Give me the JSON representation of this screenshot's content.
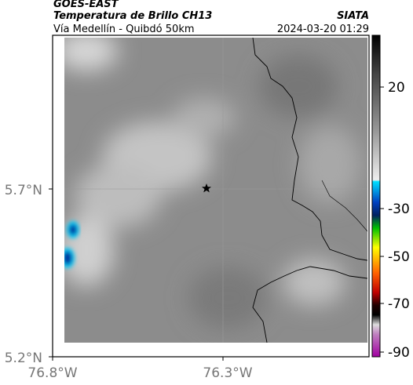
{
  "header": {
    "source": "GOES-EAST",
    "product": "Temperatura de Brillo CH13",
    "agency": "SIATA",
    "region": "Vía Medellín - Quibdó 50km",
    "timestamp": "2024-03-20 01:29"
  },
  "map": {
    "lat_labels": [
      "5.7°N",
      "5.2°N"
    ],
    "lon_labels": [
      "76.8°W",
      "76.3°W"
    ]
  },
  "colorbar": {
    "tick_labels": [
      "20",
      "-30",
      "-50",
      "-70",
      "-90"
    ]
  }
}
